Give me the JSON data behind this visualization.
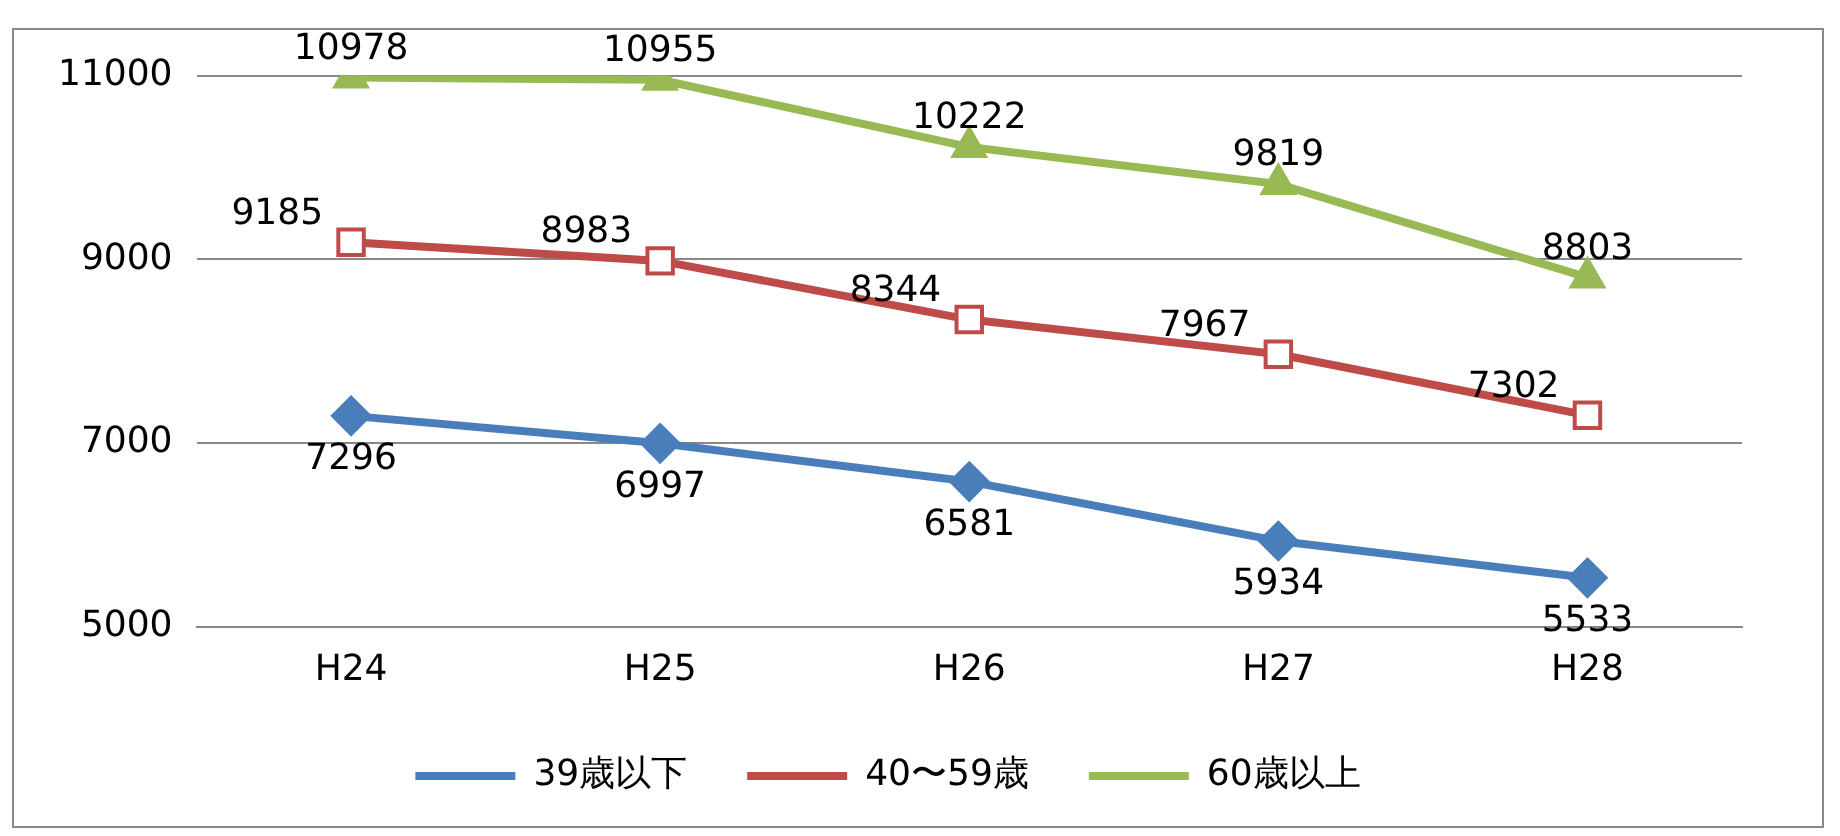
{
  "chart_data": {
    "type": "line",
    "categories": [
      "H24",
      "H25",
      "H26",
      "H27",
      "H28"
    ],
    "ylim": [
      5000,
      11000
    ],
    "yticks": [
      5000,
      7000,
      9000,
      11000
    ],
    "grid": "y",
    "legend": "bottom",
    "data_labels": true,
    "series": [
      {
        "name": "39歳以下",
        "color": "#4a7ebb",
        "marker": "diamond",
        "values": [
          7296,
          6997,
          6581,
          5934,
          5533
        ]
      },
      {
        "name": "40〜59歳",
        "color": "#be4b48",
        "marker": "square",
        "values": [
          9185,
          8983,
          8344,
          7967,
          7302
        ]
      },
      {
        "name": "60歳以上",
        "color": "#98b954",
        "marker": "triangle",
        "values": [
          10978,
          10955,
          10222,
          9819,
          8803
        ]
      }
    ]
  }
}
